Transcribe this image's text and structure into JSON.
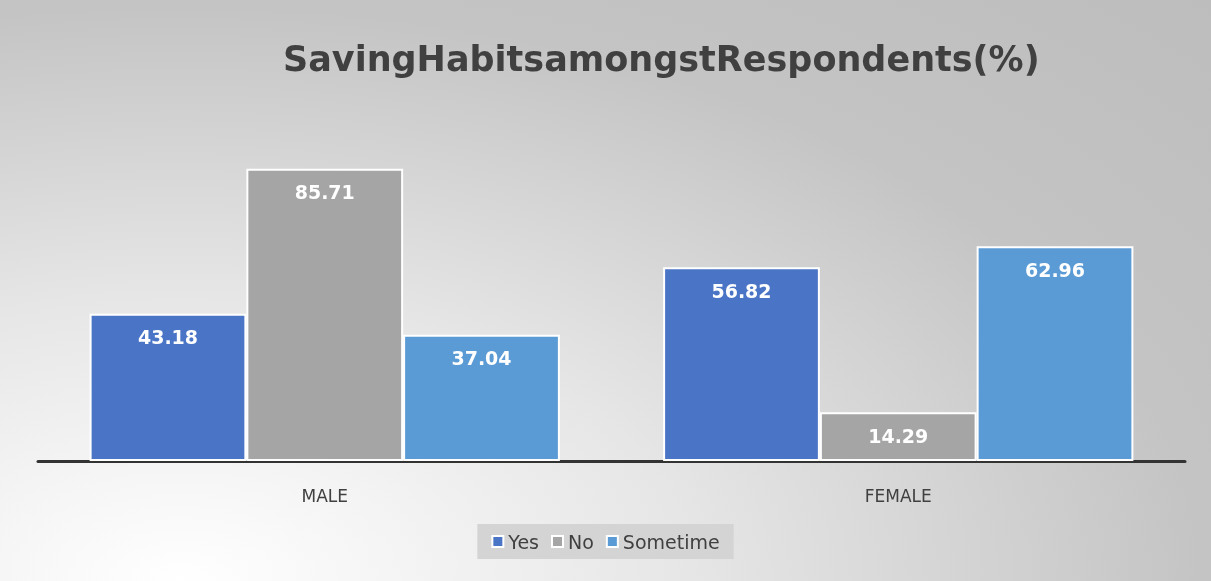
{
  "chart_data": {
    "type": "bar",
    "title": "SavingHabitsamongstRespondents(%)",
    "categories": [
      "MALE",
      "FEMALE"
    ],
    "series": [
      {
        "name": "Yes",
        "color": "#4a74c6",
        "values": [
          43.18,
          56.82
        ]
      },
      {
        "name": "No",
        "color": "#a5a5a5",
        "values": [
          85.71,
          14.29
        ]
      },
      {
        "name": "Sometime",
        "color": "#5b9bd5",
        "values": [
          37.04,
          62.96
        ]
      }
    ],
    "data_labels": true,
    "legend": "bottom"
  }
}
